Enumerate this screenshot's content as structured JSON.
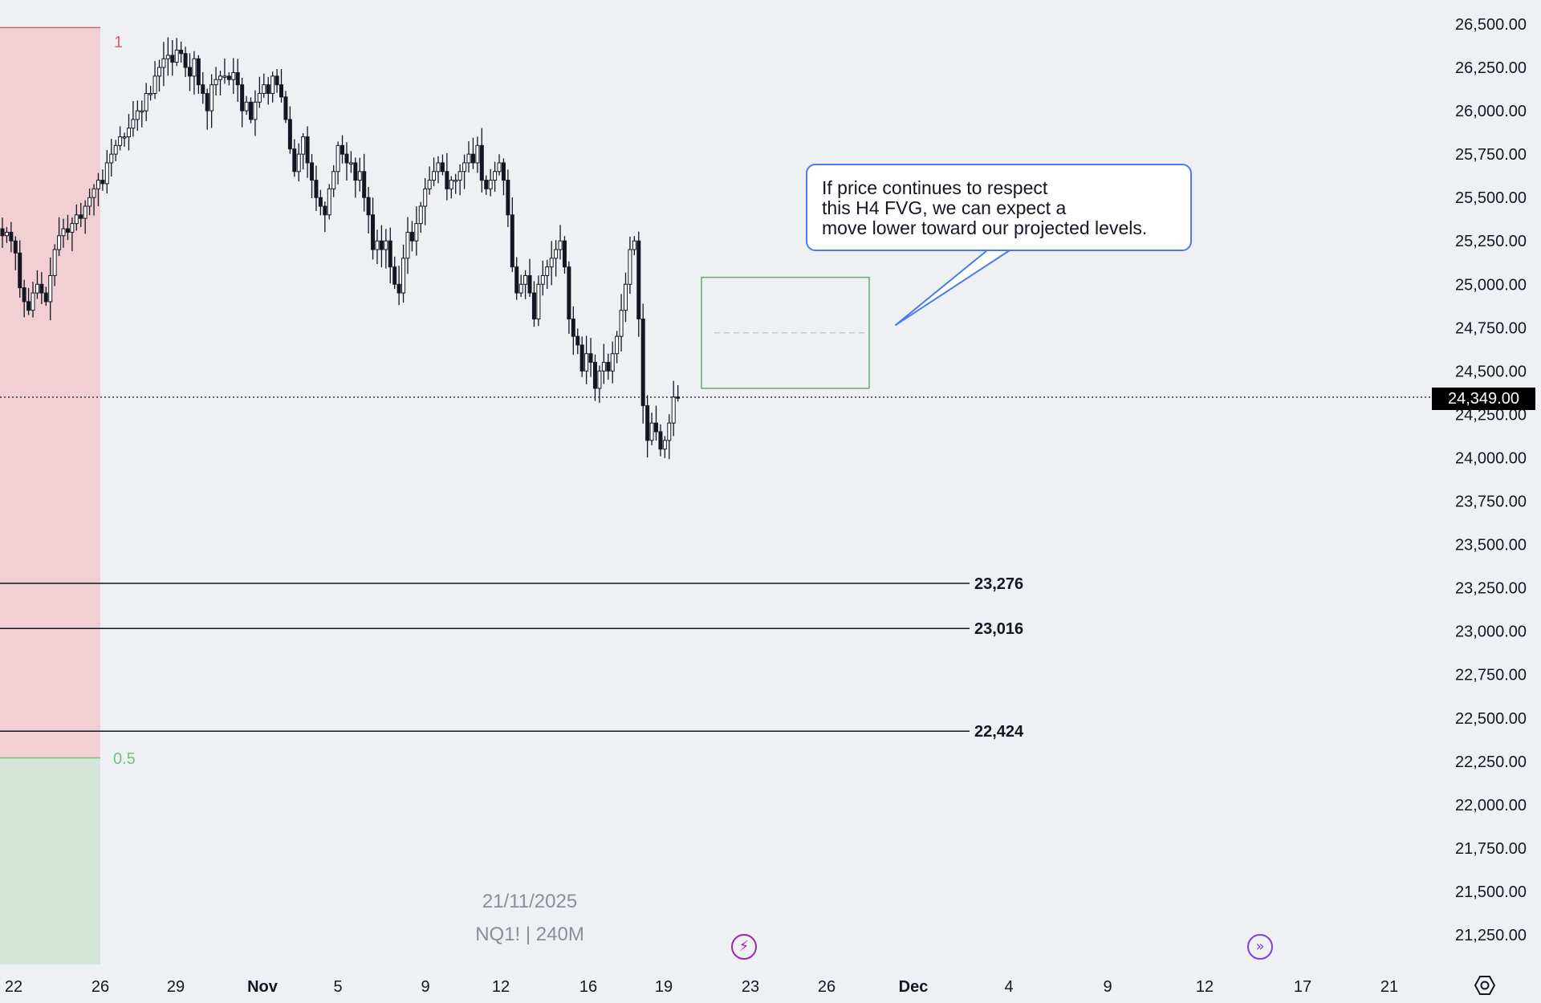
{
  "price_axis": {
    "ticks": [
      "26,500.00",
      "26,250.00",
      "26,000.00",
      "25,750.00",
      "25,500.00",
      "25,250.00",
      "25,000.00",
      "24,750.00",
      "24,500.00",
      "24,250.00",
      "24,000.00",
      "23,750.00",
      "23,500.00",
      "23,250.00",
      "23,000.00",
      "22,750.00",
      "22,500.00",
      "22,250.00",
      "22,000.00",
      "21,750.00",
      "21,500.00",
      "21,250.00"
    ],
    "current_price_label": "24,349.00"
  },
  "time_axis": {
    "labels": [
      {
        "text": "22",
        "bold": false
      },
      {
        "text": "26",
        "bold": false
      },
      {
        "text": "29",
        "bold": false
      },
      {
        "text": "Nov",
        "bold": true
      },
      {
        "text": "5",
        "bold": false
      },
      {
        "text": "9",
        "bold": false
      },
      {
        "text": "12",
        "bold": false
      },
      {
        "text": "16",
        "bold": false
      },
      {
        "text": "19",
        "bold": false
      },
      {
        "text": "23",
        "bold": false
      },
      {
        "text": "26",
        "bold": false
      },
      {
        "text": "Dec",
        "bold": true
      },
      {
        "text": "4",
        "bold": false
      },
      {
        "text": "9",
        "bold": false
      },
      {
        "text": "12",
        "bold": false
      },
      {
        "text": "17",
        "bold": false
      },
      {
        "text": "21",
        "bold": false
      }
    ]
  },
  "fib": {
    "level_1_label": "1",
    "level_05_label": "0.5",
    "level_1_value": 26480,
    "level_05_value": 22270,
    "top_zone_color": "#f2cfd4",
    "bottom_zone_color": "#d3e6d9"
  },
  "levels": [
    {
      "value": 23276,
      "label": "23,276"
    },
    {
      "value": 23016,
      "label": "23,016"
    },
    {
      "value": 22424,
      "label": "22,424"
    }
  ],
  "fvg": {
    "label": "H4 FVG",
    "top": 25040,
    "bottom": 24400,
    "mid": 24720,
    "color": "#6aa86f"
  },
  "callout": {
    "lines": [
      "If price continues to respect",
      "this H4 FVG, we can expect a",
      "move lower toward our projected levels."
    ],
    "border_color": "#4a7cf0"
  },
  "current_price": 24349,
  "watermark": {
    "date": "21/11/2025",
    "symbol": "NQ1! | 240M"
  },
  "icons": {
    "event_left": "lightning-icon",
    "event_right": "scroll-to-realtime-icon",
    "settings": "settings-gear-icon"
  },
  "chart_data": {
    "type": "candlestick",
    "symbol": "NQ1!",
    "timeframe": "240M",
    "y_range": [
      21000,
      26600
    ],
    "series": [
      {
        "name": "NQ1!",
        "closes": [
          25280,
          25300,
          25250,
          25180,
          24980,
          24900,
          24850,
          24950,
          25000,
          24950,
          24900,
          25050,
          25200,
          25280,
          25320,
          25300,
          25350,
          25400,
          25380,
          25450,
          25500,
          25550,
          25600,
          25580,
          25700,
          25750,
          25800,
          25850,
          25850,
          25900,
          25950,
          26000,
          26000,
          26100,
          26100,
          26200,
          26250,
          26300,
          26320,
          26280,
          26350,
          26330,
          26250,
          26200,
          26300,
          26150,
          26100,
          26000,
          26150,
          26180,
          26200,
          26200,
          26180,
          26220,
          26150,
          26000,
          26050,
          25950,
          26050,
          26100,
          26150,
          26100,
          26200,
          26150,
          26080,
          25950,
          25780,
          25650,
          25750,
          25850,
          25700,
          25600,
          25500,
          25450,
          25400,
          25550,
          25650,
          25800,
          25750,
          25700,
          25700,
          25600,
          25650,
          25500,
          25400,
          25200,
          25250,
          25200,
          25250,
          25100,
          25000,
          24950,
          25150,
          25300,
          25250,
          25350,
          25450,
          25550,
          25600,
          25650,
          25700,
          25650,
          25550,
          25600,
          25600,
          25650,
          25700,
          25750,
          25700,
          25800,
          25600,
          25550,
          25600,
          25650,
          25700,
          25600,
          25400,
          25100,
          24950,
          25000,
          25050,
          24950,
          24800,
          25000,
          25050,
          25100,
          25150,
          25200,
          25250,
          25100,
          24800,
          24700,
          24650,
          24500,
          24600,
          24550,
          24400,
          24500,
          24550,
          24500,
          24600,
          24700,
          24850,
          25000,
          25200,
          25250,
          24800,
          24300,
          24100,
          24200,
          24150,
          24050,
          24100,
          24200,
          24350,
          24349
        ]
      }
    ],
    "horizontal_levels": [
      23276,
      23016,
      22424
    ],
    "fib_levels": [
      {
        "ratio": "1",
        "value": 26480
      },
      {
        "ratio": "0.5",
        "value": 22270
      }
    ],
    "fvg_zone": [
      24400,
      25040
    ],
    "current_price": 24349
  }
}
